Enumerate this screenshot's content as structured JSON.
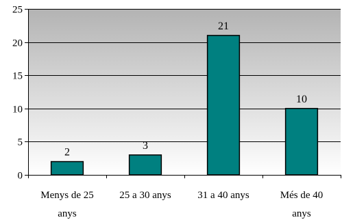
{
  "chart_data": {
    "type": "bar",
    "title": "",
    "xlabel": "",
    "ylabel": "",
    "categories": [
      [
        "Menys de 25",
        "anys"
      ],
      [
        "25 a 30 anys"
      ],
      [
        "31 a 40 anys"
      ],
      [
        "Més de 40",
        "anys"
      ]
    ],
    "values": [
      2,
      3,
      21,
      10
    ],
    "data_labels": [
      "2",
      "3",
      "21",
      "10"
    ],
    "yticks": [
      0,
      5,
      10,
      15,
      20,
      25
    ],
    "ylim": [
      0,
      25
    ],
    "grid": true,
    "legend": "none",
    "colors": {
      "bar": "#008080",
      "plot_bg_top": "#b3b3b3",
      "plot_bg_bottom": "#ffffff",
      "gridline": "#000000"
    }
  }
}
